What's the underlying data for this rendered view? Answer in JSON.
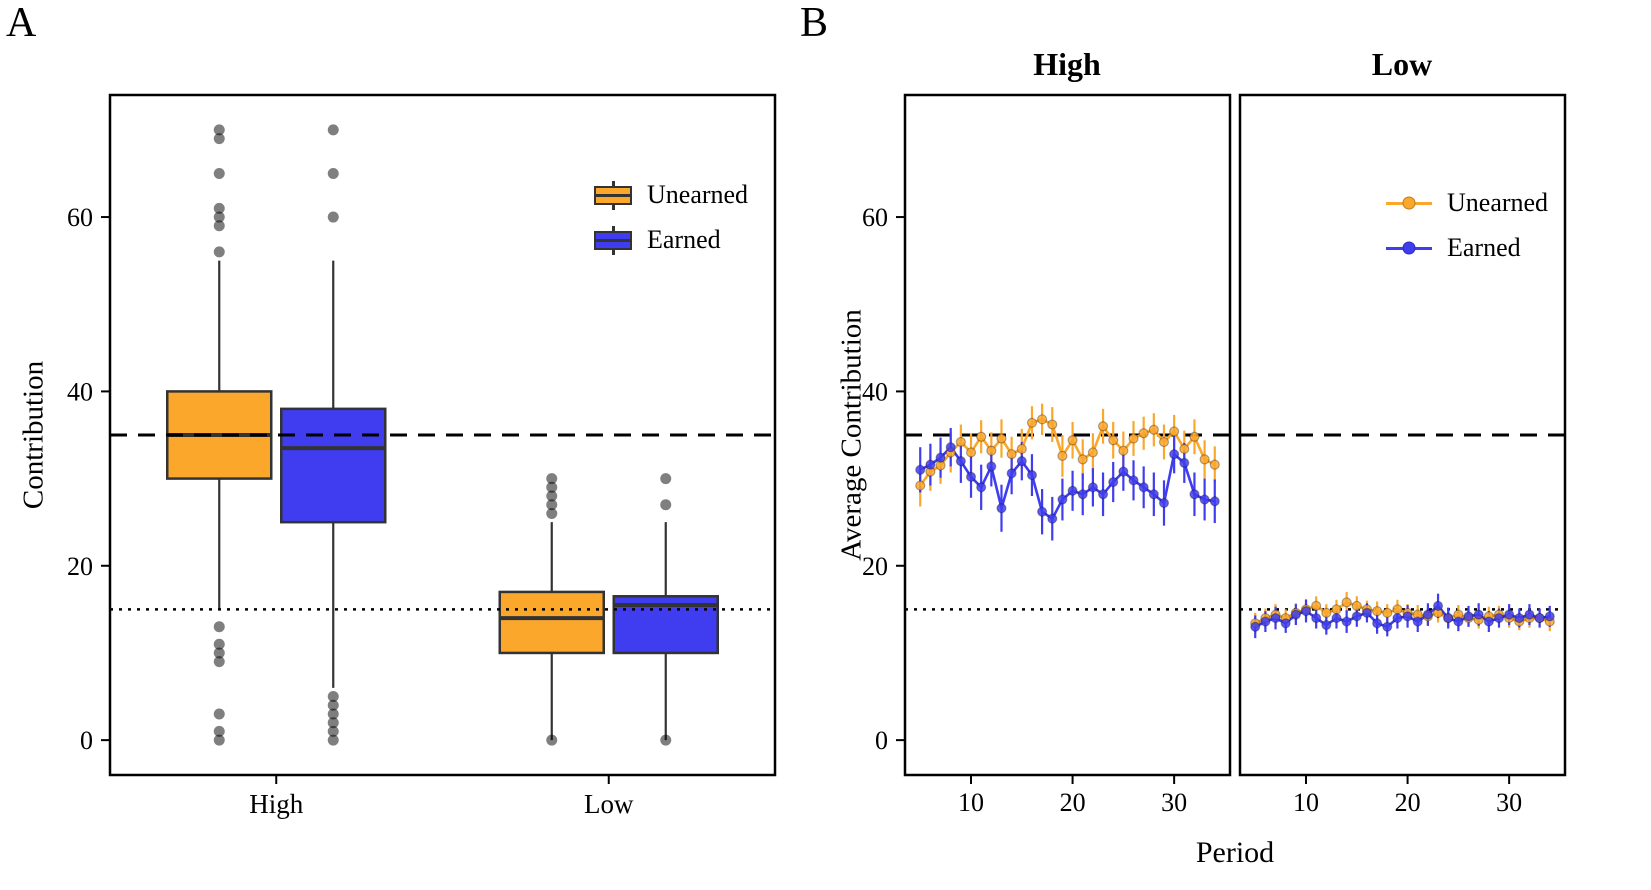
{
  "panels": {
    "a": {
      "label": "A"
    },
    "b": {
      "label": "B"
    }
  },
  "colors": {
    "unearned": "#FBA72B",
    "earned": "#3F3DEF",
    "box_border": "#333333",
    "outlier": "#000000",
    "reference": "#000000"
  },
  "chart_data": [
    {
      "type": "boxplot",
      "panel": "A",
      "title": "",
      "xlabel": "",
      "ylabel": "Contribution",
      "ylim": [
        -4,
        74
      ],
      "yticks": [
        0,
        20,
        40,
        60
      ],
      "categories": [
        "High",
        "Low"
      ],
      "legend": [
        "Unearned",
        "Earned"
      ],
      "legend_position": "inside-top-right",
      "grid": false,
      "reference_lines": [
        {
          "y": 35,
          "style": "dashed"
        },
        {
          "y": 15,
          "style": "dotted"
        }
      ],
      "series": [
        {
          "name": "Unearned",
          "boxes": [
            {
              "category": "High",
              "q1": 30,
              "median": 35,
              "q3": 40,
              "whisker_low": 15,
              "whisker_high": 55,
              "outliers": [
                70,
                69,
                65,
                61,
                60,
                59,
                56,
                13,
                11,
                10,
                9,
                3,
                1,
                0
              ]
            },
            {
              "category": "Low",
              "q1": 10,
              "median": 14,
              "q3": 17,
              "whisker_low": 0,
              "whisker_high": 25,
              "outliers": [
                30,
                29,
                28,
                27,
                26,
                0
              ]
            }
          ]
        },
        {
          "name": "Earned",
          "boxes": [
            {
              "category": "High",
              "q1": 25,
              "median": 33.5,
              "q3": 38,
              "whisker_low": 6,
              "whisker_high": 55,
              "outliers": [
                70,
                65,
                60,
                5,
                4,
                3,
                2,
                1,
                0
              ]
            },
            {
              "category": "Low",
              "q1": 10,
              "median": 15.5,
              "q3": 16.5,
              "whisker_low": 0,
              "whisker_high": 25,
              "outliers": [
                30,
                27,
                0
              ]
            }
          ]
        }
      ]
    },
    {
      "type": "line",
      "panel": "B",
      "title": "",
      "xlabel": "Period",
      "ylabel": "Average Contribution",
      "ylim": [
        -4,
        74
      ],
      "yticks": [
        0,
        20,
        40,
        60
      ],
      "xlim": [
        3.5,
        35.5
      ],
      "xticks": [
        10,
        20,
        30
      ],
      "facets": [
        "High",
        "Low"
      ],
      "legend": [
        "Unearned",
        "Earned"
      ],
      "legend_position": "inside-top-right-low-facet",
      "grid": false,
      "error_bars": true,
      "reference_lines": [
        {
          "y": 35,
          "style": "dashed"
        },
        {
          "y": 15,
          "style": "dotted"
        }
      ],
      "x": [
        5,
        6,
        7,
        8,
        9,
        10,
        11,
        12,
        13,
        14,
        15,
        16,
        17,
        18,
        19,
        20,
        21,
        22,
        23,
        24,
        25,
        26,
        27,
        28,
        29,
        30,
        31,
        32,
        33,
        34
      ],
      "series": [
        {
          "name": "Unearned",
          "facet": "High",
          "values": [
            29.2,
            30.8,
            31.5,
            33.0,
            34.2,
            33.0,
            34.8,
            33.2,
            34.6,
            32.8,
            33.4,
            36.4,
            36.8,
            36.2,
            32.6,
            34.4,
            32.2,
            33.0,
            36.0,
            34.4,
            33.2,
            34.6,
            35.2,
            35.6,
            34.2,
            35.4,
            33.4,
            34.8,
            32.2,
            31.6
          ],
          "errors": [
            2.4,
            2.2,
            2.1,
            2.3,
            2.0,
            2.2,
            1.9,
            2.1,
            2.2,
            2.0,
            2.3,
            1.9,
            1.8,
            2.0,
            2.4,
            2.1,
            2.3,
            2.2,
            2.0,
            2.1,
            2.2,
            2.0,
            1.9,
            1.9,
            2.0,
            1.9,
            2.1,
            2.0,
            2.2,
            2.1
          ]
        },
        {
          "name": "Earned",
          "facet": "High",
          "values": [
            31.0,
            31.6,
            32.4,
            33.6,
            32.0,
            30.2,
            29.0,
            31.4,
            26.6,
            30.6,
            32.0,
            30.4,
            26.2,
            25.4,
            27.6,
            28.6,
            28.2,
            29.0,
            28.2,
            29.6,
            30.8,
            29.8,
            29.0,
            28.2,
            27.2,
            32.8,
            31.8,
            28.2,
            27.6,
            27.4
          ],
          "errors": [
            2.6,
            2.4,
            2.3,
            2.2,
            2.5,
            2.4,
            2.6,
            2.3,
            2.7,
            2.4,
            2.2,
            2.4,
            2.6,
            2.5,
            2.4,
            2.3,
            2.4,
            2.2,
            2.5,
            2.3,
            2.2,
            2.3,
            2.4,
            2.5,
            2.6,
            2.2,
            2.3,
            2.5,
            2.4,
            2.5
          ]
        },
        {
          "name": "Unearned",
          "facet": "Low",
          "values": [
            13.4,
            14.0,
            14.4,
            14.0,
            14.6,
            15.0,
            15.4,
            14.6,
            15.0,
            15.8,
            15.4,
            15.0,
            14.8,
            14.6,
            15.0,
            14.6,
            14.4,
            14.2,
            14.6,
            14.0,
            14.4,
            14.0,
            13.8,
            14.2,
            14.4,
            14.0,
            13.6,
            14.0,
            14.0,
            13.6
          ],
          "errors": [
            1.2,
            1.1,
            1.2,
            1.0,
            1.1,
            1.2,
            1.1,
            1.0,
            1.1,
            1.2,
            1.1,
            1.0,
            1.1,
            1.0,
            1.1,
            1.0,
            1.1,
            1.0,
            1.1,
            1.0,
            1.1,
            1.0,
            1.0,
            1.1,
            1.0,
            1.1,
            1.0,
            1.1,
            1.0,
            1.1
          ]
        },
        {
          "name": "Earned",
          "facet": "Low",
          "values": [
            13.0,
            13.6,
            14.0,
            13.4,
            14.4,
            14.8,
            14.0,
            13.2,
            14.0,
            13.6,
            14.2,
            14.6,
            13.4,
            13.0,
            14.0,
            14.2,
            13.6,
            14.4,
            15.4,
            14.0,
            13.6,
            14.2,
            14.4,
            13.6,
            14.0,
            14.4,
            14.0,
            14.4,
            14.0,
            14.2
          ],
          "errors": [
            1.3,
            1.2,
            1.3,
            1.1,
            1.2,
            1.3,
            1.2,
            1.1,
            1.2,
            1.3,
            1.2,
            1.1,
            1.2,
            1.1,
            1.2,
            1.3,
            1.2,
            1.3,
            1.4,
            1.2,
            1.1,
            1.2,
            1.3,
            1.2,
            1.1,
            1.2,
            1.1,
            1.2,
            1.1,
            1.2
          ]
        }
      ]
    }
  ]
}
